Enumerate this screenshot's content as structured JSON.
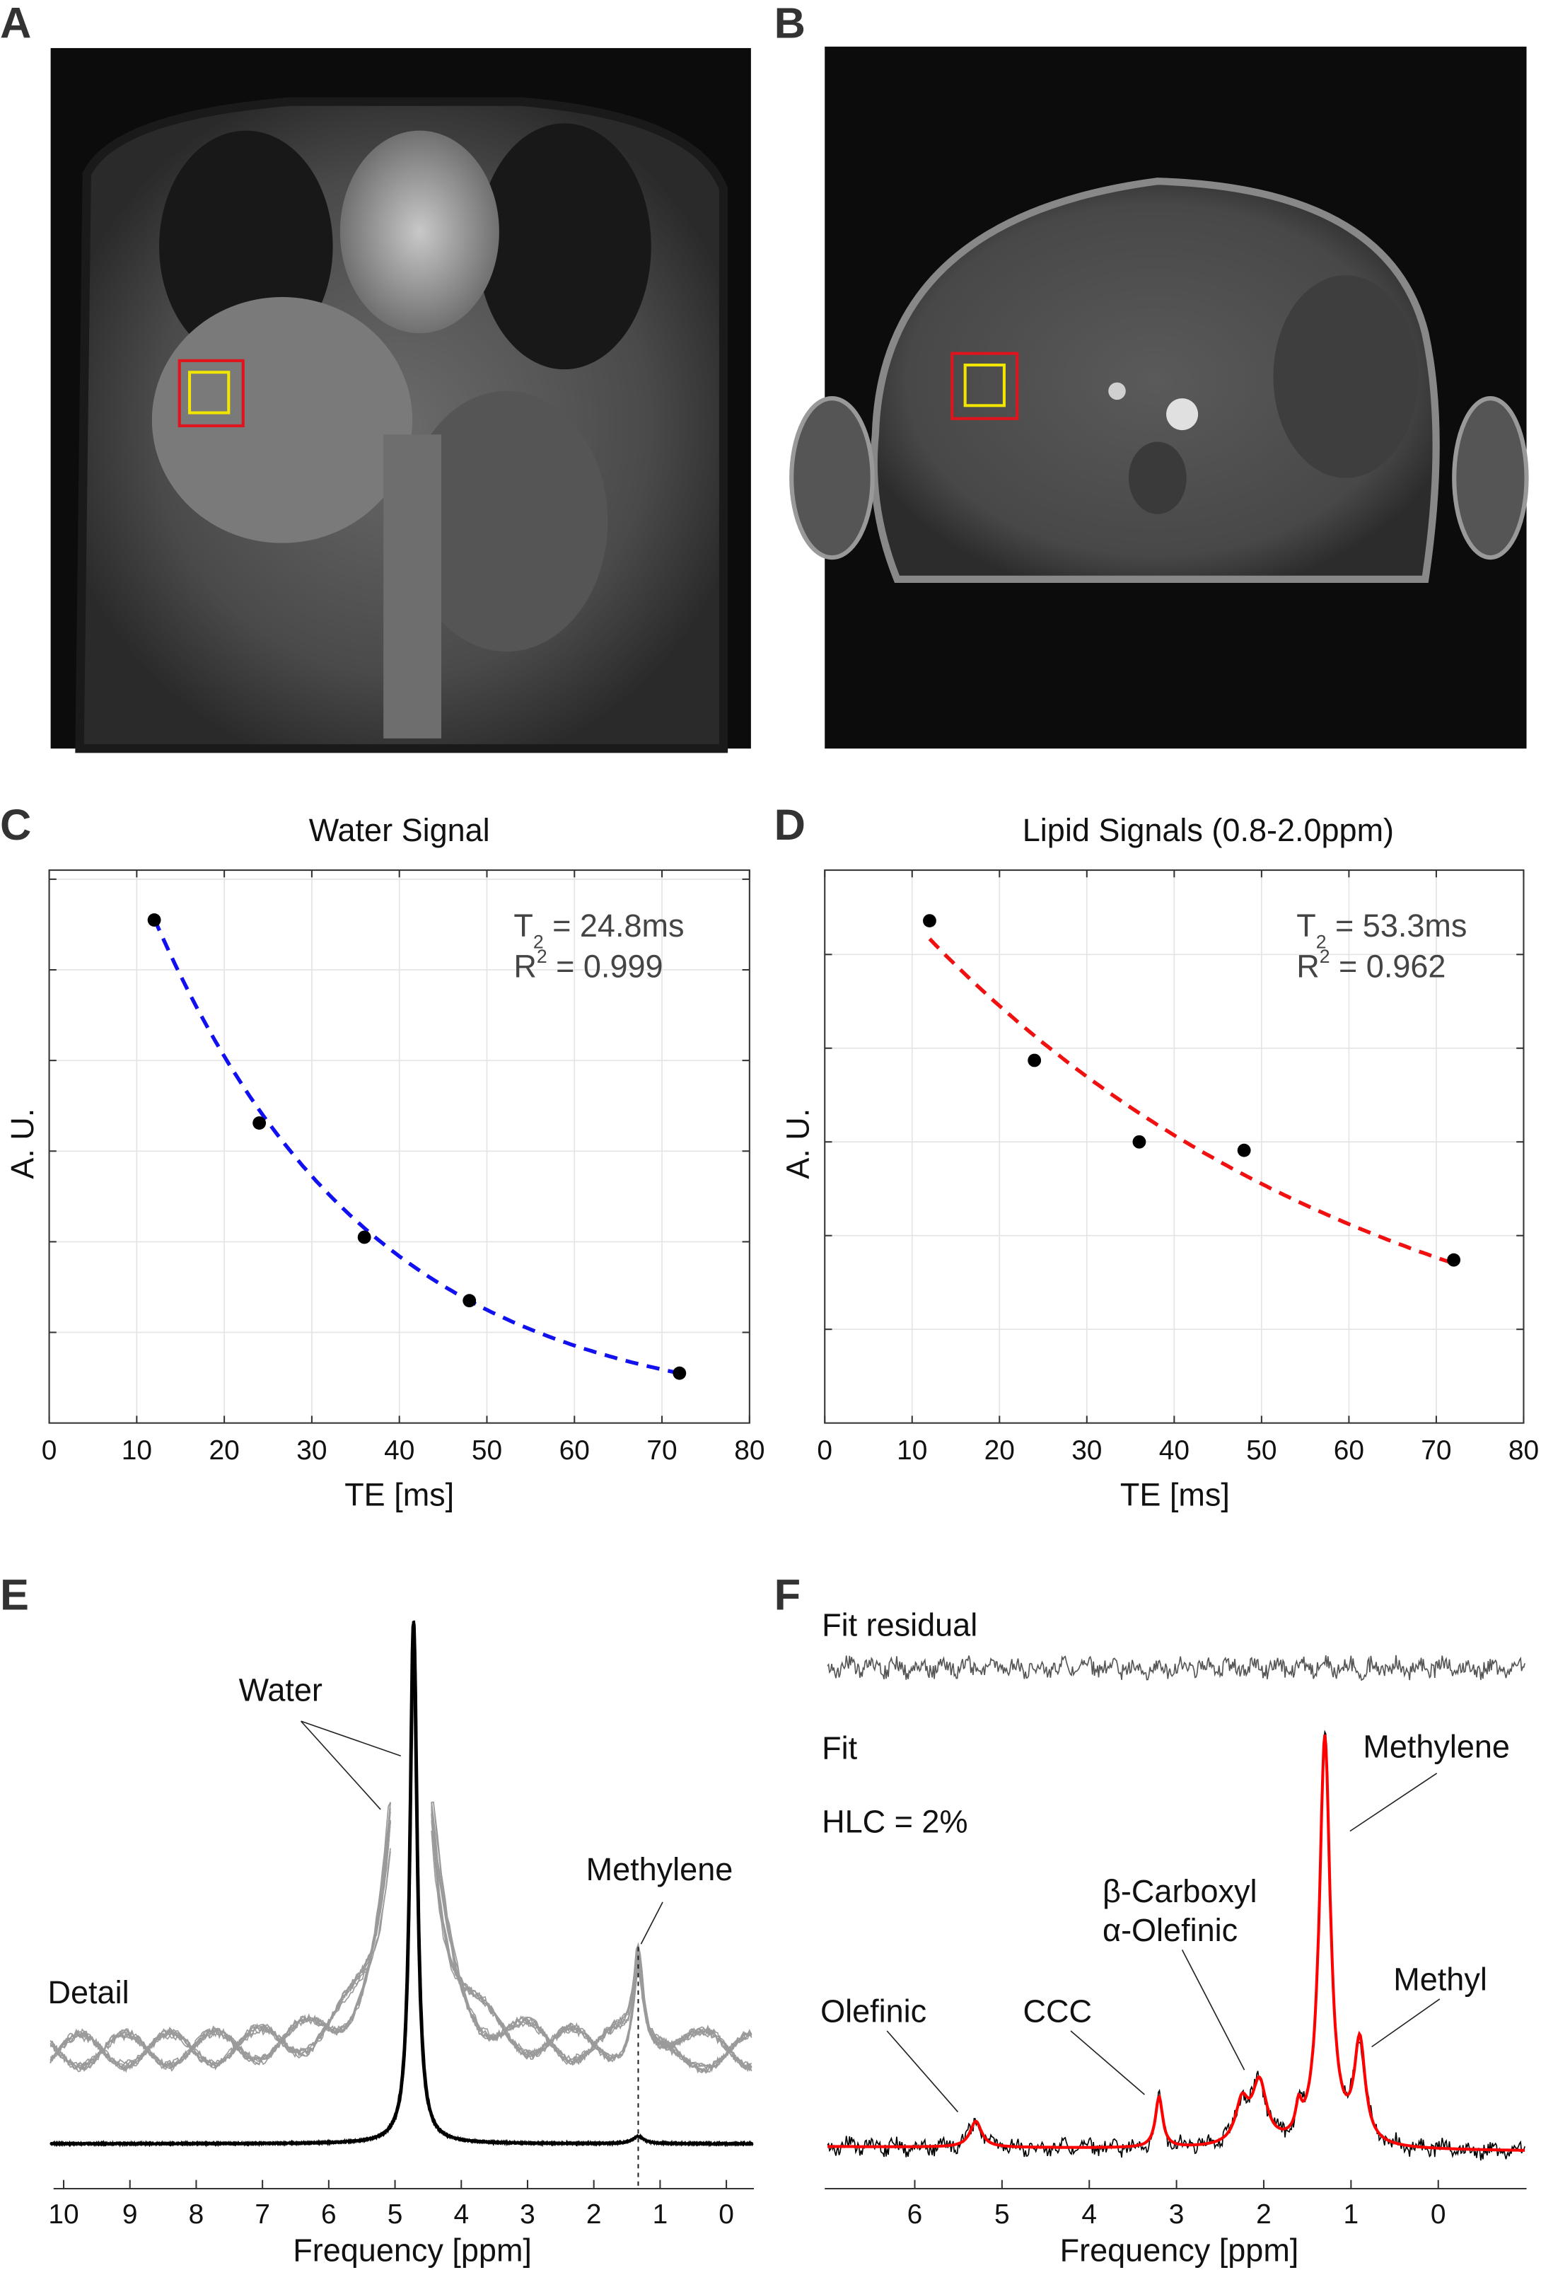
{
  "panels": {
    "a": {
      "label": "A"
    },
    "b": {
      "label": "B"
    },
    "c": {
      "label": "C"
    },
    "d": {
      "label": "D"
    },
    "e": {
      "label": "E"
    },
    "f": {
      "label": "F"
    }
  },
  "colors": {
    "roi_outer": "#e0141c",
    "roi_inner": "#f2e600",
    "water_fit": "#1010f0",
    "lipid_fit": "#f01010",
    "spectrum_fit": "#ff0000",
    "detail": "#999999"
  },
  "chart_data": [
    {
      "type": "scatter",
      "title": "Water Signal",
      "xlabel": "TE [ms]",
      "ylabel": "A. U.",
      "xlim": [
        0,
        80
      ],
      "ylim": [
        0,
        6.1
      ],
      "xticks": [
        "0",
        "10",
        "20",
        "30",
        "40",
        "50",
        "60",
        "70",
        "80"
      ],
      "x": [
        12,
        24,
        36,
        48,
        72
      ],
      "y": [
        5.55,
        3.31,
        2.05,
        1.35,
        0.55
      ],
      "fit": {
        "type": "exponential",
        "t2_ms": 24.8,
        "amplitude": 8.93,
        "offset": 0.06,
        "style": "dashed",
        "color": "#1010f0"
      },
      "annotation": {
        "t2_symbol": "T",
        "t2_sub": "2",
        "t2_text": " = 24.8ms",
        "r2_symbol": "R",
        "r2_sup": "2",
        "r2_text": " = 0.999"
      }
    },
    {
      "type": "scatter",
      "title": "Lipid Signals (0.8-2.0ppm)",
      "xlabel": "TE [ms]",
      "ylabel": "A. U.",
      "xlim": [
        0,
        80
      ],
      "ylim": [
        0,
        5.9
      ],
      "xticks": [
        "0",
        "10",
        "20",
        "30",
        "40",
        "50",
        "60",
        "70",
        "80"
      ],
      "x": [
        12,
        24,
        36,
        48,
        72
      ],
      "y": [
        5.36,
        3.87,
        3.0,
        2.91,
        1.74
      ],
      "fit": {
        "type": "exponential",
        "t2_ms": 53.3,
        "amplitude": 6.42,
        "offset": 0.04,
        "style": "dashed",
        "color": "#f01010"
      },
      "annotation": {
        "t2_symbol": "T",
        "t2_sub": "2",
        "t2_text": " = 53.3ms",
        "r2_symbol": "R",
        "r2_sup": "2",
        "r2_text": " = 0.962"
      }
    },
    {
      "type": "line",
      "xlabel": "Frequency [ppm]",
      "xlim": [
        10.2,
        -0.4
      ],
      "xticks": [
        "10",
        "9",
        "8",
        "7",
        "6",
        "5",
        "4",
        "3",
        "2",
        "1",
        "0"
      ],
      "peaks": [
        {
          "name": "Water",
          "ppm": 4.72
        },
        {
          "name": "Methylene",
          "ppm": 1.33
        }
      ],
      "labels": {
        "water": "Water",
        "methylene": "Methylene",
        "detail": "Detail"
      },
      "marker_ppm": 1.33
    },
    {
      "type": "line",
      "xlabel": "Frequency [ppm]",
      "xlim": [
        7.0,
        -1.0
      ],
      "xticks": [
        "6",
        "5",
        "4",
        "3",
        "2",
        "1",
        "0"
      ],
      "peaks": [
        {
          "name": "Olefinic",
          "ppm": 5.3,
          "amplitude": 18
        },
        {
          "name": "CCC",
          "ppm": 3.2,
          "amplitude": 35
        },
        {
          "name": "β-Carboxyl",
          "ppm": 2.25,
          "amplitude": 28
        },
        {
          "name": "α-Olefinic",
          "ppm": 2.05,
          "amplitude": 42
        },
        {
          "name": "shoulder",
          "ppm": 1.6,
          "amplitude": 18
        },
        {
          "name": "Methylene",
          "ppm": 1.3,
          "amplitude": 283
        },
        {
          "name": "Methyl",
          "ppm": 0.9,
          "amplitude": 70
        }
      ],
      "labels": {
        "residual": "Fit residual",
        "fit": "Fit",
        "hlc": "HLC = 2%",
        "methylene": "Methylene",
        "beta_carboxyl": "β-Carboxyl",
        "alpha_olefinic": "α-Olefinic",
        "methyl": "Methyl",
        "olefinic": "Olefinic",
        "ccc": "CCC"
      }
    }
  ]
}
